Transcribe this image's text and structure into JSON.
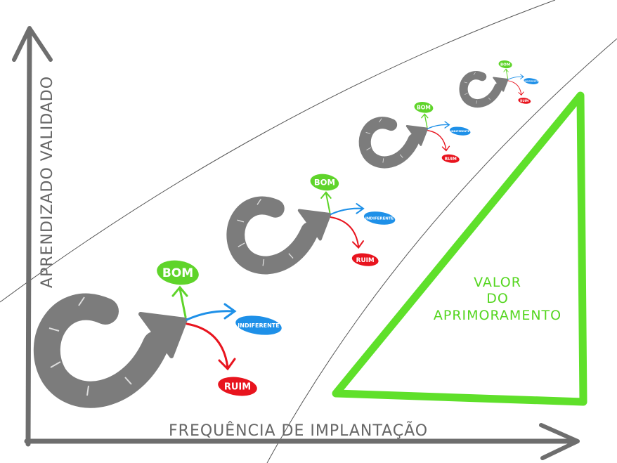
{
  "axes": {
    "y_label": "APRENDIZADO VALIDADO",
    "x_label": "FREQUÊNCIA DE IMPLANTAÇÃO"
  },
  "value_label": [
    "VALOR",
    "DO",
    "APRIMORAMENTO"
  ],
  "loops": [
    {
      "good": "BOM",
      "neutral": "INDIFERENTE",
      "bad": "RUIM"
    },
    {
      "good": "BOM",
      "neutral": "INDIFERENTE",
      "bad": "RUIM"
    },
    {
      "good": "BOM",
      "neutral": "INDIFERENTE",
      "bad": "RUIM"
    },
    {
      "good": "BOM",
      "neutral": "INDIFERENTE",
      "bad": "RUIM"
    }
  ],
  "colors": {
    "loop": "#7c7c7c",
    "good": "#5fd42a",
    "neutral": "#1e90e8",
    "bad": "#e8141e",
    "value_triangle": "#5fe02a",
    "axis": "#6e6e6e"
  }
}
